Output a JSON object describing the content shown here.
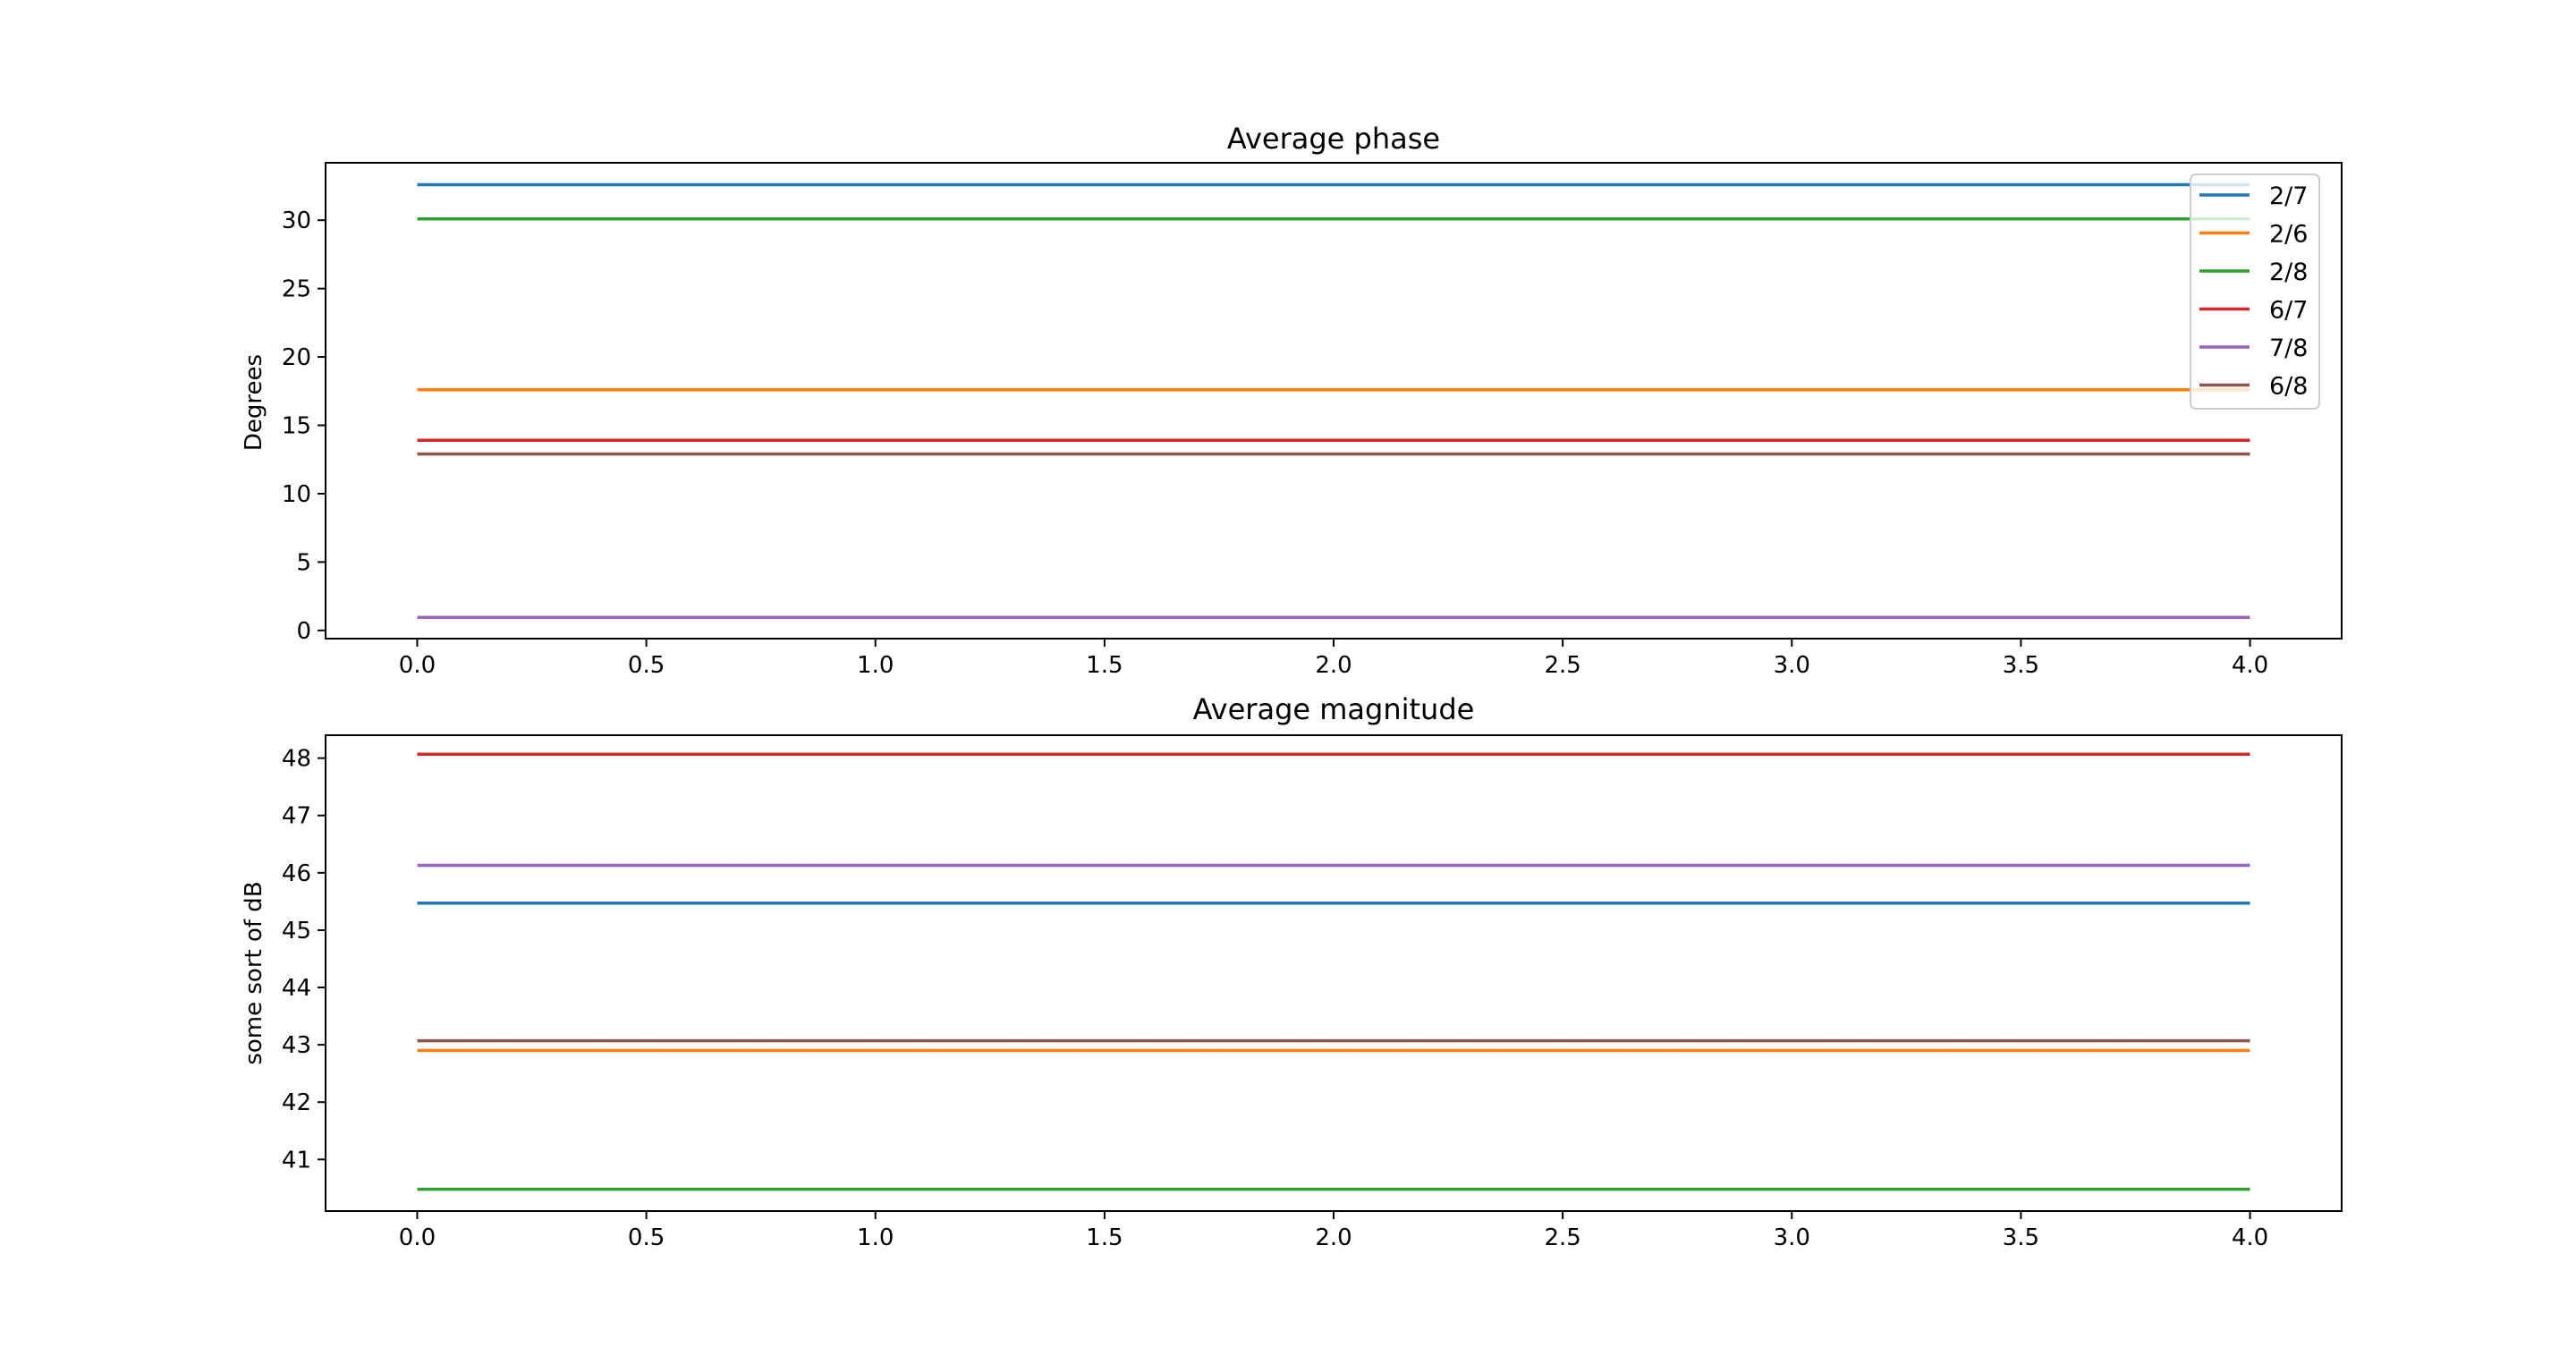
{
  "chart_data": [
    {
      "type": "line",
      "title": "Average phase",
      "xlabel": "",
      "ylabel": "Degrees",
      "xlim": [
        -0.2,
        4.2
      ],
      "ylim": [
        -0.6,
        34.2
      ],
      "xticks": [
        0.0,
        0.5,
        1.0,
        1.5,
        2.0,
        2.5,
        3.0,
        3.5,
        4.0
      ],
      "xtick_labels": [
        "0.0",
        "0.5",
        "1.0",
        "1.5",
        "2.0",
        "2.5",
        "3.0",
        "3.5",
        "4.0"
      ],
      "yticks": [
        0,
        5,
        10,
        15,
        20,
        25,
        30
      ],
      "ytick_labels": [
        "0",
        "5",
        "10",
        "15",
        "20",
        "25",
        "30"
      ],
      "grid": false,
      "legend": "top-right",
      "x": [
        0,
        1,
        2,
        3,
        4
      ],
      "series": [
        {
          "name": "2/7",
          "color": "#1f77b4",
          "values": [
            32.6,
            32.6,
            32.6,
            32.6,
            32.6
          ]
        },
        {
          "name": "2/6",
          "color": "#ff7f0e",
          "values": [
            17.6,
            17.6,
            17.6,
            17.6,
            17.6
          ]
        },
        {
          "name": "2/8",
          "color": "#2ca02c",
          "values": [
            30.1,
            30.1,
            30.1,
            30.1,
            30.1
          ]
        },
        {
          "name": "6/7",
          "color": "#d62728",
          "values": [
            13.9,
            13.9,
            13.9,
            13.9,
            13.9
          ]
        },
        {
          "name": "7/8",
          "color": "#9467bd",
          "values": [
            0.95,
            0.95,
            0.95,
            0.95,
            0.95
          ]
        },
        {
          "name": "6/8",
          "color": "#8c564b",
          "values": [
            12.9,
            12.9,
            12.9,
            12.9,
            12.9
          ]
        }
      ]
    },
    {
      "type": "line",
      "title": "Average magnitude",
      "xlabel": "",
      "ylabel": "some sort of dB",
      "xlim": [
        -0.2,
        4.2
      ],
      "ylim": [
        40.1,
        48.4
      ],
      "xticks": [
        0.0,
        0.5,
        1.0,
        1.5,
        2.0,
        2.5,
        3.0,
        3.5,
        4.0
      ],
      "xtick_labels": [
        "0.0",
        "0.5",
        "1.0",
        "1.5",
        "2.0",
        "2.5",
        "3.0",
        "3.5",
        "4.0"
      ],
      "yticks": [
        41,
        42,
        43,
        44,
        45,
        46,
        47,
        48
      ],
      "ytick_labels": [
        "41",
        "42",
        "43",
        "44",
        "45",
        "46",
        "47",
        "48"
      ],
      "grid": false,
      "legend": "none",
      "x": [
        0,
        1,
        2,
        3,
        4
      ],
      "series": [
        {
          "name": "2/7",
          "color": "#1f77b4",
          "values": [
            45.47,
            45.47,
            45.47,
            45.47,
            45.47
          ]
        },
        {
          "name": "2/6",
          "color": "#ff7f0e",
          "values": [
            42.9,
            42.9,
            42.9,
            42.9,
            42.9
          ]
        },
        {
          "name": "2/8",
          "color": "#2ca02c",
          "values": [
            40.48,
            40.48,
            40.48,
            40.48,
            40.48
          ]
        },
        {
          "name": "6/7",
          "color": "#d62728",
          "values": [
            48.07,
            48.07,
            48.07,
            48.07,
            48.07
          ]
        },
        {
          "name": "7/8",
          "color": "#9467bd",
          "values": [
            46.13,
            46.13,
            46.13,
            46.13,
            46.13
          ]
        },
        {
          "name": "6/8",
          "color": "#8c564b",
          "values": [
            43.07,
            43.07,
            43.07,
            43.07,
            43.07
          ]
        }
      ]
    }
  ]
}
